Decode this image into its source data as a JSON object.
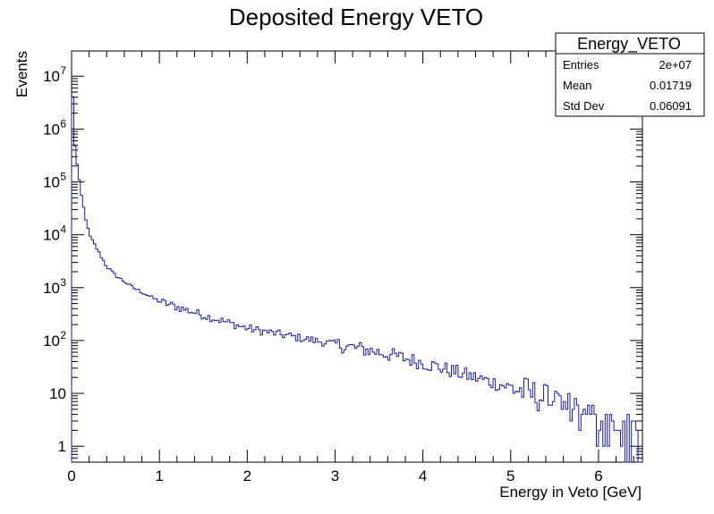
{
  "chart_data": {
    "type": "histogram",
    "title": "Deposited Energy VETO",
    "xlabel": "Energy in Veto [GeV]",
    "ylabel": "Events",
    "xlim": [
      0,
      6.5
    ],
    "ylim": [
      0.5,
      30000000
    ],
    "yscale": "log",
    "bin_width": 0.025,
    "x_ticks": [
      "0",
      "1",
      "2",
      "3",
      "4",
      "5",
      "6"
    ],
    "y_ticks": [
      {
        "value": 1,
        "label": "1"
      },
      {
        "value": 10,
        "label": "10"
      },
      {
        "value": 100,
        "label": "10",
        "exp": "2"
      },
      {
        "value": 1000,
        "label": "10",
        "exp": "3"
      },
      {
        "value": 10000,
        "label": "10",
        "exp": "4"
      },
      {
        "value": 100000,
        "label": "10",
        "exp": "5"
      },
      {
        "value": 1000000,
        "label": "10",
        "exp": "6"
      },
      {
        "value": 10000000,
        "label": "10",
        "exp": "7"
      }
    ],
    "line_color": "#1a1aa6",
    "profile": [
      [
        0.0,
        20000000
      ],
      [
        0.025,
        800000
      ],
      [
        0.05,
        300000
      ],
      [
        0.075,
        150000
      ],
      [
        0.1,
        70000
      ],
      [
        0.15,
        25000
      ],
      [
        0.2,
        10000
      ],
      [
        0.3,
        5000
      ],
      [
        0.4,
        2500
      ],
      [
        0.5,
        1700
      ],
      [
        0.7,
        1000
      ],
      [
        1.0,
        550
      ],
      [
        1.5,
        300
      ],
      [
        2.0,
        170
      ],
      [
        2.5,
        120
      ],
      [
        3.0,
        85
      ],
      [
        3.5,
        60
      ],
      [
        4.0,
        38
      ],
      [
        4.5,
        22
      ],
      [
        5.0,
        13
      ],
      [
        5.5,
        7
      ],
      [
        6.0,
        3
      ],
      [
        6.45,
        1.5
      ]
    ],
    "empty_from": 6.45,
    "stats": {
      "name": "Energy_VETO",
      "rows": [
        {
          "label": "Entries",
          "value": "2e+07"
        },
        {
          "label": "Mean",
          "value": "0.01719"
        },
        {
          "label": "Std Dev",
          "value": "0.06091"
        }
      ]
    }
  }
}
